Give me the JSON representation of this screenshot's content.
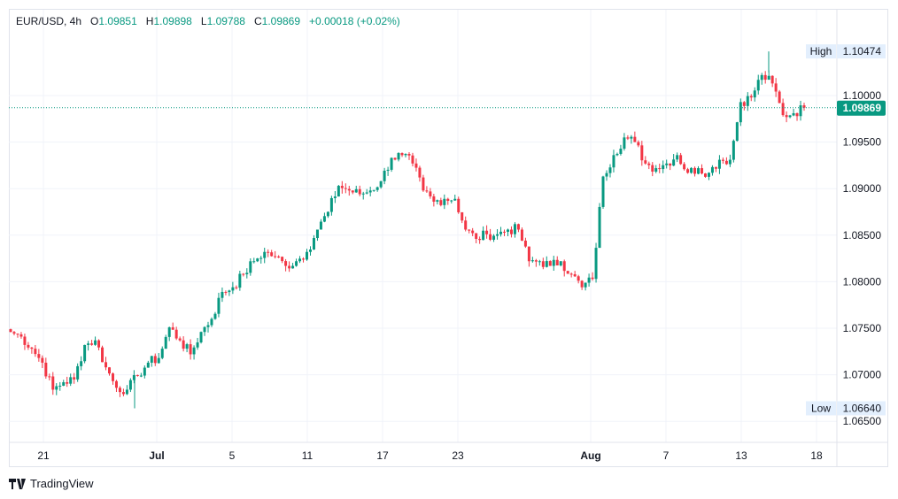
{
  "legend": {
    "symbol": "EUR/USD, 4h",
    "o_label": "O",
    "o": "1.09851",
    "h_label": "H",
    "h": "1.09898",
    "l_label": "L",
    "l": "1.09788",
    "c_label": "C",
    "c": "1.09869",
    "change": "+0.00018 (+0.02%)"
  },
  "brand": "TradingView",
  "colors": {
    "up": "#089981",
    "down": "#f23645",
    "grid": "#f0f3fa",
    "badge_bg": "#e3effd"
  },
  "chart_data": {
    "type": "candlestick",
    "title": "EUR/USD, 4h",
    "price_ticks": [
      "1.10000",
      "1.09500",
      "1.09000",
      "1.08500",
      "1.08000",
      "1.07500",
      "1.07000",
      "1.06500"
    ],
    "price_tick_values": [
      1.1,
      1.095,
      1.09,
      1.085,
      1.08,
      1.075,
      1.07,
      1.065
    ],
    "ylim": [
      1.0615,
      1.1077
    ],
    "time_ticks": [
      "21",
      "Jul",
      "5",
      "11",
      "17",
      "23",
      "Aug",
      "7",
      "13",
      "18"
    ],
    "high_label": "High",
    "high": "1.10474",
    "high_value": 1.10474,
    "low_label": "Low",
    "low": "1.06640",
    "low_value": 1.0664,
    "last_price": "1.09869",
    "last_value": 1.09869,
    "closes": [
      1.0746,
      1.0741,
      1.0728,
      1.0713,
      1.0684,
      1.0692,
      1.0695,
      1.0732,
      1.0737,
      1.0708,
      1.0686,
      1.0684,
      1.0699,
      1.0713,
      1.0718,
      1.0751,
      1.0737,
      1.0722,
      1.0746,
      1.076,
      1.0789,
      1.0794,
      1.0808,
      1.0822,
      1.0832,
      1.0827,
      1.0817,
      1.0822,
      1.0832,
      1.0856,
      1.0875,
      1.0903,
      1.0898,
      1.0894,
      1.0898,
      1.0908,
      1.0933,
      1.0936,
      1.0927,
      1.0898,
      1.0886,
      1.0889,
      1.0889,
      1.0856,
      1.0846,
      1.0851,
      1.0851,
      1.0856,
      1.0856,
      1.0822,
      1.0822,
      1.0817,
      1.0822,
      1.0808,
      1.0794,
      1.0803,
      1.0913,
      1.0936,
      1.0955,
      1.095,
      1.0927,
      1.0922,
      1.0927,
      1.0936,
      1.0917,
      1.0922,
      1.0917,
      1.0931,
      1.0931,
      1.0993,
      1.0998,
      1.1022,
      1.1013,
      1.0979,
      1.0981,
      1.09869
    ]
  }
}
